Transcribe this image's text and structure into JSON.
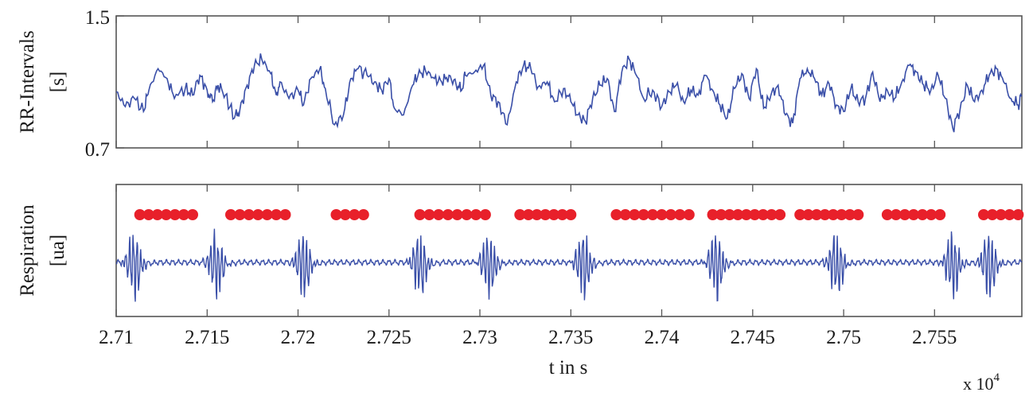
{
  "chart_data": [
    {
      "type": "line",
      "ylabel": "RR-Intervals [s]",
      "ylabel_lines": [
        "RR-Intervals",
        "[s]"
      ],
      "ylim": [
        0.7,
        1.5
      ],
      "yticks": [
        "1.5",
        "0.7"
      ],
      "yticks_values": [
        1.5,
        0.7
      ],
      "xlim": [
        27100,
        27598
      ],
      "grid": false,
      "line_color": "#3a4fa8",
      "series": [
        {
          "x": [
            27100,
            27105,
            27110,
            27115,
            27118,
            27123,
            27128,
            27132,
            27138,
            27142,
            27146,
            27150,
            27153,
            27156,
            27160,
            27165,
            27168,
            27172,
            27176,
            27180,
            27185,
            27188,
            27190,
            27195,
            27200,
            27203,
            27207,
            27212,
            27215,
            27220,
            27225,
            27229,
            27233,
            27238,
            27242,
            27246,
            27250,
            27253,
            27258,
            27263,
            27266,
            27270,
            27275,
            27279,
            27283,
            27287,
            27290,
            27292,
            27297,
            27302,
            27306,
            27310,
            27315,
            27320,
            27324,
            27328,
            27332,
            27337,
            27341,
            27346,
            27350,
            27354,
            27358,
            27362,
            27366,
            27370,
            27374,
            27378,
            27382,
            27386,
            27390,
            27395,
            27400,
            27404,
            27408,
            27412,
            27416,
            27420,
            27424,
            27428,
            27432,
            27436,
            27440,
            27444,
            27448,
            27452,
            27456,
            27460,
            27464,
            27468,
            27472,
            27476,
            27480,
            27484,
            27488,
            27492,
            27496,
            27500,
            27504,
            27508,
            27512,
            27516,
            27520,
            27524,
            27528,
            27532,
            27536,
            27540,
            27544,
            27548,
            27552,
            27556,
            27560,
            27564,
            27568,
            27572,
            27576,
            27580,
            27584,
            27588,
            27592,
            27596,
            27598
          ],
          "values": [
            1.04,
            0.95,
            1.0,
            0.92,
            1.05,
            1.18,
            1.12,
            1.0,
            1.06,
            1.02,
            1.14,
            1.05,
            0.98,
            1.08,
            1.02,
            0.88,
            0.93,
            1.08,
            1.2,
            1.24,
            1.15,
            1.02,
            1.1,
            1.0,
            1.05,
            0.96,
            1.12,
            1.18,
            1.06,
            0.84,
            0.9,
            1.12,
            1.18,
            1.14,
            1.1,
            1.05,
            1.12,
            0.94,
            0.9,
            1.08,
            1.14,
            1.17,
            1.12,
            1.1,
            1.14,
            1.08,
            1.05,
            1.14,
            1.16,
            1.2,
            1.02,
            0.98,
            0.84,
            1.1,
            1.2,
            1.18,
            1.07,
            1.1,
            0.98,
            1.06,
            0.98,
            0.9,
            0.86,
            1.0,
            1.08,
            1.12,
            0.92,
            1.16,
            1.24,
            1.14,
            1.0,
            1.05,
            0.95,
            1.04,
            1.08,
            0.98,
            1.05,
            1.02,
            1.14,
            1.05,
            0.96,
            0.88,
            1.06,
            1.15,
            1.0,
            1.18,
            0.94,
            1.02,
            1.08,
            0.9,
            0.85,
            1.12,
            1.18,
            1.12,
            1.02,
            1.09,
            0.96,
            0.92,
            1.06,
            0.98,
            1.0,
            1.16,
            0.98,
            1.05,
            1.0,
            1.1,
            1.2,
            1.16,
            1.08,
            1.05,
            1.14,
            1.0,
            0.82,
            0.93,
            1.08,
            0.98,
            1.05,
            1.14,
            1.18,
            1.1,
            1.0,
            0.96,
            1.02
          ]
        }
      ]
    },
    {
      "type": "line",
      "ylabel": "Respiration [ua]",
      "ylabel_lines": [
        "Respiration",
        "[ua]"
      ],
      "xlabel": "t in s",
      "xticks": [
        "2.71",
        "2.715",
        "2.72",
        "2.725",
        "2.73",
        "2.735",
        "2.74",
        "2.745",
        "2.75",
        "2.755"
      ],
      "xticks_values": [
        27100,
        27150,
        27200,
        27250,
        27300,
        27350,
        27400,
        27450,
        27500,
        27550
      ],
      "x_multiplier_label": "x 10",
      "x_multiplier_exponent": "4",
      "xlim": [
        27100,
        27598
      ],
      "ylim": [
        -1,
        1
      ],
      "grid": false,
      "line_color": "#3a4fa8",
      "marker_color": "#e8202a",
      "breathing_segments": [
        [
          27113,
          27142
        ],
        [
          27163,
          27193
        ],
        [
          27221,
          27236
        ],
        [
          27267,
          27303
        ],
        [
          27322,
          27350
        ],
        [
          27375,
          27415
        ],
        [
          27428,
          27465
        ],
        [
          27476,
          27508
        ],
        [
          27524,
          27553
        ],
        [
          27577,
          27596
        ]
      ],
      "bursts": [
        27110,
        27155,
        27203,
        27267,
        27305,
        27357,
        27430,
        27496,
        27560,
        27580
      ]
    }
  ]
}
